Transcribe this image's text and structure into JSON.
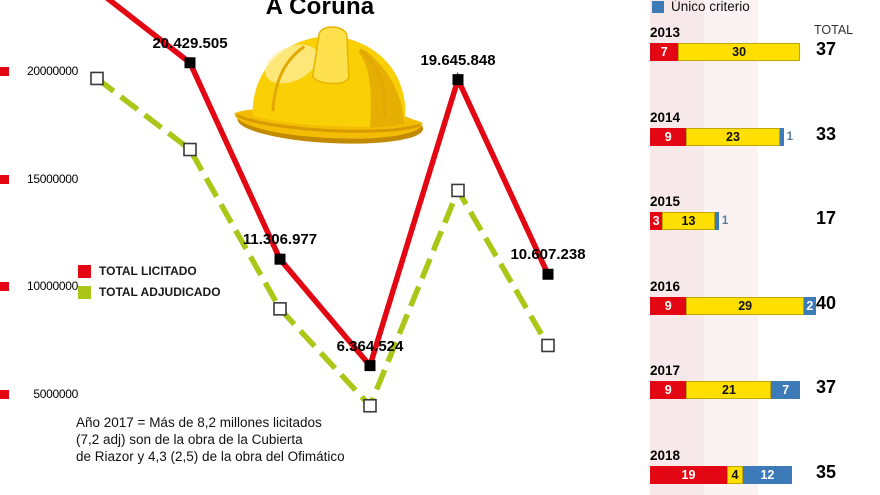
{
  "title": "A Coruña",
  "colors": {
    "red": "#e30613",
    "yellow": "#ffdf00",
    "blue": "#3d7ab8",
    "green": "#abc617",
    "stripe": "#f7e9e9"
  },
  "chart_data": [
    {
      "type": "line",
      "title": "A Coruña",
      "x": [
        2013,
        2014,
        2015,
        2016,
        2017,
        2018
      ],
      "series": [
        {
          "name": "TOTAL LICITADO",
          "color": "#e30613",
          "values": [
            23800000,
            20429505,
            11306977,
            6364524,
            19645848,
            10607238
          ],
          "point_labels": [
            "",
            "20.429.505",
            "11.306.977",
            "6.364.524",
            "19.645.848",
            "10.607.238"
          ]
        },
        {
          "name": "TOTAL ADJUDICADO",
          "color": "#abc617",
          "estimated": true,
          "values": [
            19700000,
            16400000,
            9000000,
            4500000,
            14500000,
            7300000
          ]
        }
      ],
      "y_ticks": [
        20000000,
        15000000,
        10000000,
        5000000
      ],
      "ylim": [
        0,
        22500000
      ],
      "grid": false,
      "legend_position": "middle-left",
      "note_lines": [
        "Año 2017 = Más de 8,2 millones licitados",
        "(7,2 adj) son de la obra de la Cubierta",
        "de Riazor y 4,3 (2,5) de la obra del Ofimático"
      ]
    },
    {
      "type": "bar",
      "orientation": "horizontal-stacked",
      "categories": [
        "2013",
        "2014",
        "2015",
        "2016",
        "2017",
        "2018"
      ],
      "series": [
        {
          "name": "",
          "key": "red",
          "color": "#e30613",
          "text": "#ffffff",
          "values": [
            7,
            9,
            3,
            9,
            9,
            19
          ]
        },
        {
          "name": "",
          "key": "yellow",
          "color": "#ffdf00",
          "text": "#111111",
          "values": [
            30,
            23,
            13,
            29,
            21,
            4
          ]
        },
        {
          "name": "Único criterio",
          "key": "blue",
          "color": "#3d7ab8",
          "text": "#ffffff",
          "values": [
            0,
            1,
            1,
            2,
            7,
            12
          ]
        }
      ],
      "totals": [
        37,
        33,
        17,
        40,
        37,
        35
      ],
      "totals_header": "TOTAL",
      "legend_position": "top"
    }
  ]
}
